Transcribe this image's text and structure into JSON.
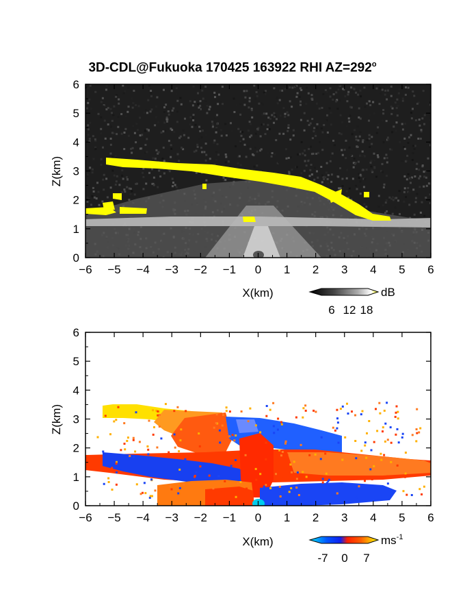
{
  "title": {
    "main": "3D-CDL@Fukuoka 170425 163922 RHI AZ=292",
    "degree": "o"
  },
  "chart_data": [
    {
      "type": "heatmap",
      "variable": "dB",
      "xlabel": "X(km)",
      "ylabel": "Z(km)",
      "xlim": [
        -6,
        6
      ],
      "ylim": [
        0,
        6
      ],
      "xticks": [
        -6,
        -5,
        -4,
        -3,
        -2,
        -1,
        0,
        1,
        2,
        3,
        4,
        5,
        6
      ],
      "yticks": [
        0,
        1,
        2,
        3,
        4,
        5,
        6
      ],
      "colorbar": {
        "unit": "dB",
        "tick_labels": [
          "6",
          "12",
          "18"
        ],
        "colors": [
          "#000000",
          "#555555",
          "#aaaaaa",
          "#ffffff",
          "#ffff00"
        ]
      },
      "features": [
        {
          "label": "cloud layer (>18 dB)",
          "x_range": [
            -5.3,
            4.6
          ],
          "z_top": [
            3.4,
            1.3
          ],
          "z_base": [
            3.1,
            1.2
          ]
        },
        {
          "label": "lower echo",
          "x_range": [
            -6,
            6
          ],
          "z_range": [
            0,
            2.4
          ]
        }
      ]
    },
    {
      "type": "heatmap",
      "variable": "Doppler velocity",
      "xlabel": "X(km)",
      "ylabel": "Z(km)",
      "xlim": [
        -6,
        6
      ],
      "ylim": [
        0,
        6
      ],
      "xticks": [
        -6,
        -5,
        -4,
        -3,
        -2,
        -1,
        0,
        1,
        2,
        3,
        4,
        5,
        6
      ],
      "yticks": [
        0,
        1,
        2,
        3,
        4,
        5,
        6
      ],
      "colorbar": {
        "unit": "ms",
        "unit_exponent": "-1",
        "tick_labels": [
          "-7",
          "0",
          "7"
        ],
        "colors": [
          "#00e5ff",
          "#0055ff",
          "#1020ee",
          "#ff2000",
          "#ff5a00",
          "#ffc000",
          "#ffff00"
        ]
      }
    }
  ]
}
